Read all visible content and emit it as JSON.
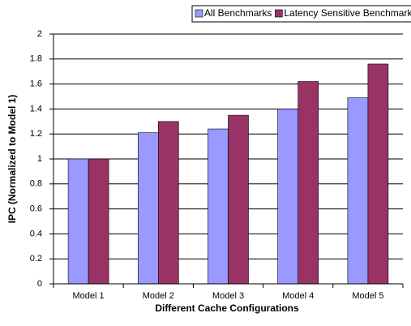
{
  "chart_data": {
    "type": "bar",
    "x_label": "Different Cache Configurations",
    "y_label": "IPC (Normalized to Model 1)",
    "categories": [
      "Model 1",
      "Model 2",
      "Model 3",
      "Model 4",
      "Model 5"
    ],
    "series": [
      {
        "name": "All Benchmarks",
        "color": "#9999ff",
        "values": [
          1.0,
          1.21,
          1.24,
          1.4,
          1.49
        ]
      },
      {
        "name": "Latency Sensitive Benchmarks",
        "color": "#993366",
        "values": [
          1.0,
          1.3,
          1.35,
          1.62,
          1.76
        ]
      }
    ],
    "ylim": [
      0,
      2
    ],
    "yticks": [
      0,
      0.2,
      0.4,
      0.6,
      0.8,
      1,
      1.2,
      1.4,
      1.6,
      1.8,
      2
    ],
    "grid": true,
    "legend": "top"
  }
}
